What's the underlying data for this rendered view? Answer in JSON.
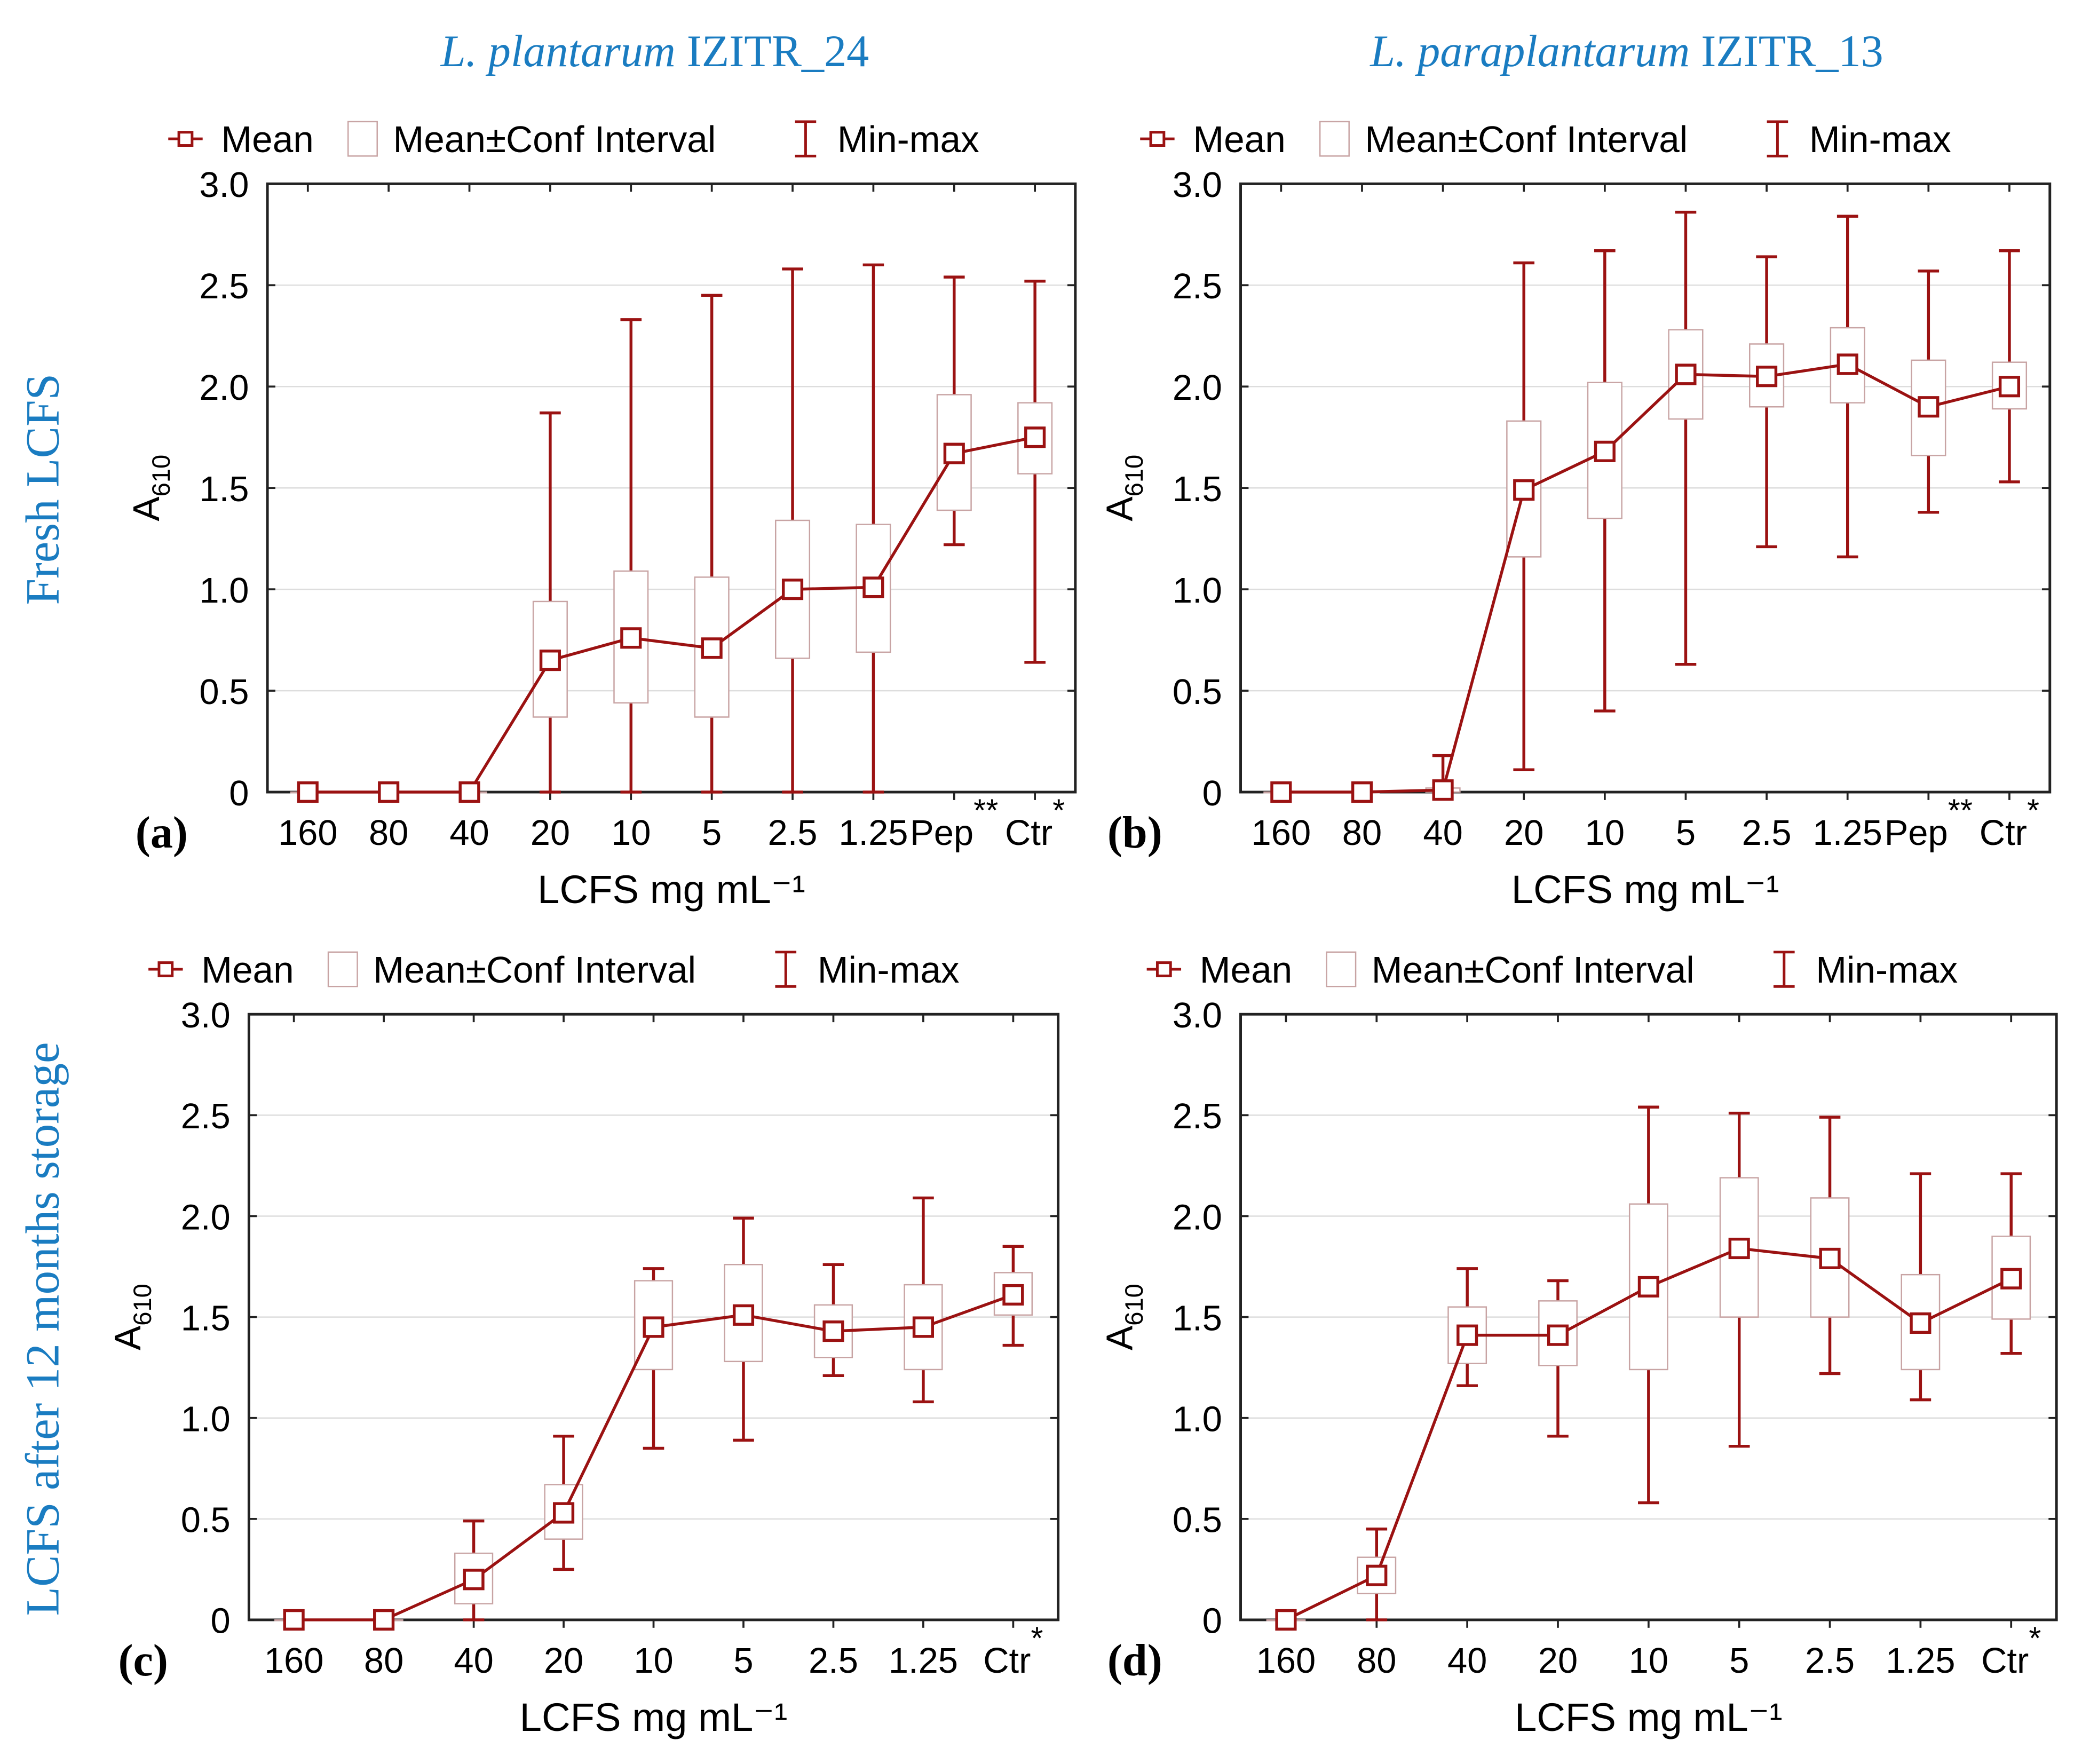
{
  "column_titles": [
    {
      "italic": "L. plantarum",
      "rest": " IZITR_24"
    },
    {
      "italic": "L. paraplantarum",
      "rest": " IZITR_13"
    }
  ],
  "row_titles": [
    "Fresh LCFS",
    "LCFS after 12 months storage"
  ],
  "legend": {
    "mean": "Mean",
    "ci": "Mean±Conf Interval",
    "minmax": "Min-max"
  },
  "colors": {
    "series": "#9b1212",
    "box": "#c8a4a4",
    "title": "#1a7cc1",
    "grid": "#dddddd",
    "axis": "#222222"
  },
  "chart_data": [
    {
      "type": "box",
      "panel_label": "(a)",
      "xlabel": "LCFS mg mL⁻¹",
      "ylabel": "A610",
      "ylim": [
        0,
        3.0
      ],
      "yticks": [
        "0",
        "0.5",
        "1.0",
        "1.5",
        "2.0",
        "2.5",
        "3.0"
      ],
      "grid": true,
      "legend_position": "top",
      "categories": [
        "160",
        "80",
        "40",
        "20",
        "10",
        "5",
        "2.5",
        "1.25",
        "Pep**",
        "Ctr*"
      ],
      "mean": [
        0,
        0,
        0,
        0.65,
        0.76,
        0.71,
        1.0,
        1.01,
        1.67,
        1.75
      ],
      "ci_low": [
        0,
        0,
        0,
        0.37,
        0.44,
        0.37,
        0.66,
        0.69,
        1.39,
        1.57
      ],
      "ci_high": [
        0,
        0,
        0,
        0.94,
        1.09,
        1.06,
        1.34,
        1.32,
        1.96,
        1.92
      ],
      "min": [
        0,
        0,
        0,
        0,
        0,
        0,
        0,
        0,
        1.22,
        0.64
      ],
      "max": [
        0,
        0,
        0,
        1.87,
        2.33,
        2.45,
        2.58,
        2.6,
        2.54,
        2.52
      ]
    },
    {
      "type": "box",
      "panel_label": "(b)",
      "xlabel": "LCFS mg mL⁻¹",
      "ylabel": "A610",
      "ylim": [
        0,
        3.0
      ],
      "yticks": [
        "0",
        "0.5",
        "1.0",
        "1.5",
        "2.0",
        "2.5",
        "3.0"
      ],
      "grid": true,
      "legend_position": "top",
      "categories": [
        "160",
        "80",
        "40",
        "20",
        "10",
        "5",
        "2.5",
        "1.25",
        "Pep**",
        "Ctr*"
      ],
      "mean": [
        0,
        0,
        0.01,
        1.49,
        1.68,
        2.06,
        2.05,
        2.11,
        1.9,
        2.0
      ],
      "ci_low": [
        0,
        0,
        0,
        1.16,
        1.35,
        1.84,
        1.9,
        1.92,
        1.66,
        1.89
      ],
      "ci_high": [
        0,
        0,
        0.02,
        1.83,
        2.02,
        2.28,
        2.21,
        2.29,
        2.13,
        2.12
      ],
      "min": [
        0,
        0,
        0,
        0.11,
        0.4,
        0.63,
        1.21,
        1.16,
        1.38,
        1.53
      ],
      "max": [
        0,
        0,
        0.18,
        2.61,
        2.67,
        2.86,
        2.64,
        2.84,
        2.57,
        2.67
      ]
    },
    {
      "type": "box",
      "panel_label": "(c)",
      "xlabel": "LCFS mg mL⁻¹",
      "ylabel": "A610",
      "ylim": [
        0,
        3.0
      ],
      "yticks": [
        "0",
        "0.5",
        "1.0",
        "1.5",
        "2.0",
        "2.5",
        "3.0"
      ],
      "grid": true,
      "legend_position": "top",
      "categories": [
        "160",
        "80",
        "40",
        "20",
        "10",
        "5",
        "2.5",
        "1.25",
        "Ctr*"
      ],
      "mean": [
        0,
        0,
        0.2,
        0.53,
        1.45,
        1.51,
        1.43,
        1.45,
        1.61
      ],
      "ci_low": [
        0,
        0,
        0.08,
        0.4,
        1.24,
        1.28,
        1.3,
        1.24,
        1.51
      ],
      "ci_high": [
        0,
        0,
        0.33,
        0.67,
        1.68,
        1.76,
        1.56,
        1.66,
        1.72
      ],
      "min": [
        0,
        0,
        0,
        0.25,
        0.85,
        0.89,
        1.21,
        1.08,
        1.36
      ],
      "max": [
        0,
        0,
        0.49,
        0.91,
        1.74,
        1.99,
        1.76,
        2.09,
        1.85
      ]
    },
    {
      "type": "box",
      "panel_label": "(d)",
      "xlabel": "LCFS mg mL⁻¹",
      "ylabel": "A610",
      "ylim": [
        0,
        3.0
      ],
      "yticks": [
        "0",
        "0.5",
        "1.0",
        "1.5",
        "2.0",
        "2.5",
        "3.0"
      ],
      "grid": true,
      "legend_position": "top",
      "categories": [
        "160",
        "80",
        "40",
        "20",
        "10",
        "5",
        "2.5",
        "1.25",
        "Ctr*"
      ],
      "mean": [
        0,
        0.22,
        1.41,
        1.41,
        1.65,
        1.84,
        1.79,
        1.47,
        1.69
      ],
      "ci_low": [
        0,
        0.13,
        1.27,
        1.26,
        1.24,
        1.5,
        1.5,
        1.24,
        1.49
      ],
      "ci_high": [
        0,
        0.31,
        1.55,
        1.58,
        2.06,
        2.19,
        2.09,
        1.71,
        1.9
      ],
      "min": [
        0,
        0,
        1.16,
        0.91,
        0.58,
        0.86,
        1.22,
        1.09,
        1.32
      ],
      "max": [
        0,
        0.45,
        1.74,
        1.68,
        2.54,
        2.51,
        2.49,
        2.21,
        2.21
      ]
    }
  ]
}
